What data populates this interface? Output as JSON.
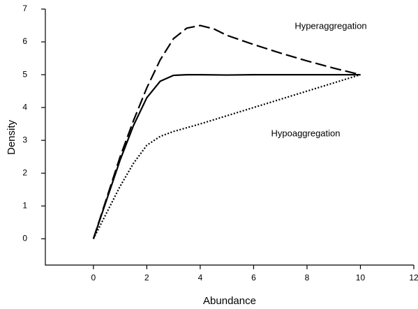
{
  "chart_data": {
    "type": "line",
    "x_label": "Abundance",
    "y_label": "Density",
    "annotations": [
      "Hyperaggregation",
      "Hypoaggregation"
    ],
    "xlim": [
      -1.8,
      12
    ],
    "ylim": [
      -0.8,
      7
    ],
    "xticks": [
      0,
      2,
      4,
      6,
      8,
      10,
      12
    ],
    "yticks": [
      0,
      1,
      2,
      3,
      4,
      5,
      6,
      7
    ],
    "grid": false,
    "series": [
      {
        "color": "#000000",
        "dash": "dashed",
        "x": [
          0,
          0.5,
          1,
          1.5,
          2,
          2.5,
          3,
          3.5,
          4,
          4.5,
          5,
          6,
          7,
          8,
          9,
          10
        ],
        "values": [
          0,
          1.25,
          2.5,
          3.6,
          4.6,
          5.45,
          6.1,
          6.42,
          6.5,
          6.4,
          6.2,
          5.92,
          5.66,
          5.42,
          5.2,
          5
        ]
      },
      {
        "color": "#000000",
        "dash": "solid",
        "x": [
          0,
          0.5,
          1,
          1.5,
          2,
          2.5,
          3,
          3.5,
          4,
          5,
          6,
          8,
          10
        ],
        "values": [
          0,
          1.2,
          2.4,
          3.45,
          4.3,
          4.8,
          4.98,
          5,
          5,
          4.99,
          5,
          5,
          5
        ]
      },
      {
        "color": "#000000",
        "dash": "dotted",
        "x": [
          0,
          0.5,
          1,
          1.5,
          2,
          2.5,
          3,
          4,
          5,
          6,
          7,
          8,
          9,
          10
        ],
        "values": [
          0,
          0.8,
          1.6,
          2.3,
          2.85,
          3.12,
          3.27,
          3.5,
          3.75,
          4,
          4.25,
          4.5,
          4.75,
          5
        ]
      }
    ]
  }
}
